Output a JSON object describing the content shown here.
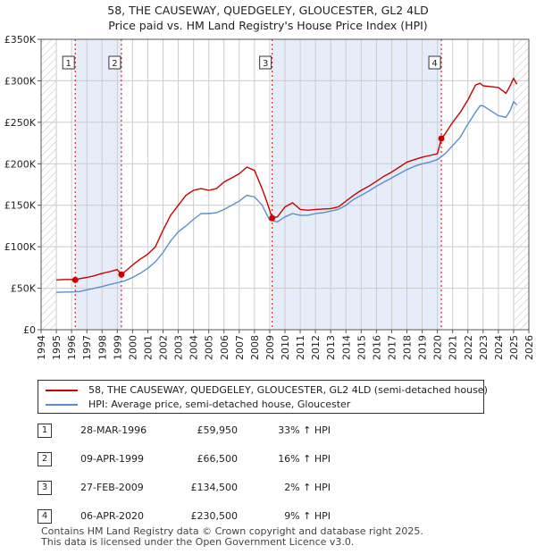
{
  "title": {
    "line1": "58, THE CAUSEWAY, QUEDGELEY, GLOUCESTER, GL2 4LD",
    "line2": "Price paid vs. HM Land Registry's House Price Index (HPI)"
  },
  "colors": {
    "price_line": "#cc0000",
    "hpi_line": "#5b8fcc",
    "shade": "#dde5f5",
    "grid": "#cccccc",
    "marker_dash": "#cc0000"
  },
  "legend": {
    "price_label": "58, THE CAUSEWAY, QUEDGELEY, GLOUCESTER, GL2 4LD (semi-detached house)",
    "hpi_label": "HPI: Average price, semi-detached house, Gloucester"
  },
  "transactions": [
    {
      "num": "1",
      "date": "28-MAR-1996",
      "price": "£59,950",
      "hpi": "33% ↑ HPI"
    },
    {
      "num": "2",
      "date": "09-APR-1999",
      "price": "£66,500",
      "hpi": "16% ↑ HPI"
    },
    {
      "num": "3",
      "date": "27-FEB-2009",
      "price": "£134,500",
      "hpi": "2% ↑ HPI"
    },
    {
      "num": "4",
      "date": "06-APR-2020",
      "price": "£230,500",
      "hpi": "9% ↑ HPI"
    }
  ],
  "footer": {
    "line1": "Contains HM Land Registry data © Crown copyright and database right 2025.",
    "line2": "This data is licensed under the Open Government Licence v3.0."
  },
  "chart_data": {
    "type": "line",
    "title": "58, THE CAUSEWAY, QUEDGELEY, GLOUCESTER, GL2 4LD — Price paid vs. HM Land Registry's House Price Index (HPI)",
    "xlabel": "",
    "ylabel": "",
    "xlim": [
      1994,
      2026
    ],
    "ylim": [
      0,
      350000
    ],
    "x_ticks": [
      1994,
      1995,
      1996,
      1997,
      1998,
      1999,
      2000,
      2001,
      2002,
      2003,
      2004,
      2005,
      2006,
      2007,
      2008,
      2009,
      2010,
      2011,
      2012,
      2013,
      2014,
      2015,
      2016,
      2017,
      2018,
      2019,
      2020,
      2021,
      2022,
      2023,
      2024,
      2025,
      2026
    ],
    "y_ticks": [
      0,
      50000,
      100000,
      150000,
      200000,
      250000,
      300000,
      350000
    ],
    "y_tick_labels": [
      "£0",
      "£50K",
      "£100K",
      "£150K",
      "£200K",
      "£250K",
      "£300K",
      "£350K"
    ],
    "grid": true,
    "shaded_ranges": [
      [
        1996.24,
        1999.27
      ],
      [
        2009.16,
        2020.26
      ]
    ],
    "hatched_ranges": [
      [
        1994.0,
        1995.0
      ],
      [
        2025.0,
        2026.0
      ]
    ],
    "series": [
      {
        "name": "58, THE CAUSEWAY, QUEDGELEY, GLOUCESTER, GL2 4LD (semi-detached house)",
        "color": "#cc0000",
        "x": [
          1995.0,
          1995.5,
          1996.0,
          1996.24,
          1996.5,
          1997.0,
          1997.5,
          1998.0,
          1998.5,
          1999.0,
          1999.27,
          1999.5,
          2000.0,
          2000.5,
          2001.0,
          2001.5,
          2002.0,
          2002.5,
          2003.0,
          2003.5,
          2004.0,
          2004.5,
          2005.0,
          2005.5,
          2006.0,
          2006.5,
          2007.0,
          2007.5,
          2008.0,
          2008.5,
          2008.8,
          2009.16,
          2009.5,
          2010.0,
          2010.5,
          2011.0,
          2011.5,
          2012.0,
          2012.5,
          2013.0,
          2013.5,
          2014.0,
          2014.5,
          2015.0,
          2015.5,
          2016.0,
          2016.5,
          2017.0,
          2017.5,
          2018.0,
          2018.5,
          2019.0,
          2019.5,
          2020.0,
          2020.26,
          2020.5,
          2021.0,
          2021.5,
          2022.0,
          2022.5,
          2022.8,
          2023.0,
          2023.5,
          2024.0,
          2024.5,
          2024.8,
          2025.0,
          2025.2
        ],
        "y": [
          60000,
          60500,
          60500,
          59950,
          61500,
          63000,
          65000,
          68000,
          70000,
          72500,
          66500,
          70000,
          78000,
          85000,
          91000,
          100000,
          120000,
          138000,
          150000,
          162000,
          168000,
          170000,
          168000,
          170000,
          178000,
          183000,
          188000,
          196000,
          192000,
          170000,
          155000,
          134500,
          136000,
          148000,
          153000,
          145000,
          144000,
          145000,
          145500,
          146000,
          148000,
          155000,
          162000,
          168000,
          173000,
          179000,
          185000,
          190000,
          196000,
          202000,
          205000,
          208000,
          210000,
          212000,
          230500,
          236000,
          250000,
          262000,
          277000,
          295000,
          297000,
          294000,
          293000,
          292000,
          285000,
          295000,
          303000,
          296000
        ]
      },
      {
        "name": "HPI: Average price, semi-detached house, Gloucester",
        "color": "#5b8fcc",
        "x": [
          1995.0,
          1995.5,
          1996.0,
          1996.5,
          1997.0,
          1997.5,
          1998.0,
          1998.5,
          1999.0,
          1999.5,
          2000.0,
          2000.5,
          2001.0,
          2001.5,
          2002.0,
          2002.5,
          2003.0,
          2003.5,
          2004.0,
          2004.5,
          2005.0,
          2005.5,
          2006.0,
          2006.5,
          2007.0,
          2007.5,
          2008.0,
          2008.5,
          2009.0,
          2009.5,
          2010.0,
          2010.5,
          2011.0,
          2011.5,
          2012.0,
          2012.5,
          2013.0,
          2013.5,
          2014.0,
          2014.5,
          2015.0,
          2015.5,
          2016.0,
          2016.5,
          2017.0,
          2017.5,
          2018.0,
          2018.5,
          2019.0,
          2019.5,
          2020.0,
          2020.5,
          2021.0,
          2021.5,
          2022.0,
          2022.5,
          2022.8,
          2023.0,
          2023.5,
          2024.0,
          2024.5,
          2024.8,
          2025.0,
          2025.2
        ],
        "y": [
          45000,
          45500,
          45500,
          46000,
          48000,
          50000,
          52000,
          54500,
          56500,
          59000,
          63000,
          68000,
          74000,
          82000,
          93000,
          107000,
          118000,
          125000,
          133000,
          140000,
          140000,
          141000,
          145000,
          150000,
          155000,
          162000,
          160000,
          150000,
          132000,
          130000,
          136000,
          140000,
          138000,
          138000,
          140000,
          141000,
          143000,
          145000,
          150000,
          157000,
          162000,
          167000,
          173000,
          178000,
          183000,
          188000,
          193000,
          197000,
          200000,
          202000,
          205000,
          212000,
          222000,
          232000,
          248000,
          262000,
          270000,
          270000,
          264000,
          258000,
          256000,
          265000,
          275000,
          271000
        ]
      }
    ],
    "annotations": [
      {
        "label": "1",
        "x": 1996.24,
        "y": 59950
      },
      {
        "label": "2",
        "x": 1999.27,
        "y": 66500
      },
      {
        "label": "3",
        "x": 2009.16,
        "y": 134500
      },
      {
        "label": "4",
        "x": 2020.26,
        "y": 230500
      }
    ]
  }
}
